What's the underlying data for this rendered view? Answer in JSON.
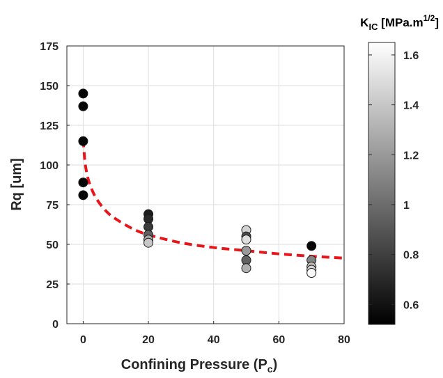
{
  "chart_data": {
    "type": "scatter",
    "xlabel": "Confining Pressure (P",
    "xlabel_sub": "c",
    "xlabel_close": ")",
    "ylabel": "Rq [um]",
    "xlim": [
      -5,
      80
    ],
    "ylim": [
      0,
      175
    ],
    "xticks": [
      0,
      20,
      40,
      60,
      80
    ],
    "yticks": [
      0,
      25,
      50,
      75,
      100,
      125,
      150,
      175
    ],
    "grid": true,
    "points": [
      {
        "x": 0,
        "y": 145,
        "kic": 0.55
      },
      {
        "x": 0,
        "y": 137,
        "kic": 0.55
      },
      {
        "x": 0,
        "y": 115,
        "kic": 0.55
      },
      {
        "x": 0,
        "y": 89,
        "kic": 0.55
      },
      {
        "x": 0,
        "y": 81,
        "kic": 0.55
      },
      {
        "x": 20,
        "y": 69,
        "kic": 0.65
      },
      {
        "x": 20,
        "y": 66,
        "kic": 0.7
      },
      {
        "x": 20,
        "y": 61,
        "kic": 0.78
      },
      {
        "x": 20,
        "y": 56,
        "kic": 0.95
      },
      {
        "x": 20,
        "y": 53,
        "kic": 1.25
      },
      {
        "x": 20,
        "y": 51,
        "kic": 1.4
      },
      {
        "x": 50,
        "y": 59,
        "kic": 1.45
      },
      {
        "x": 50,
        "y": 55,
        "kic": 0.85
      },
      {
        "x": 50,
        "y": 53,
        "kic": 1.5
      },
      {
        "x": 50,
        "y": 46,
        "kic": 1.2
      },
      {
        "x": 50,
        "y": 40,
        "kic": 0.95
      },
      {
        "x": 50,
        "y": 35,
        "kic": 1.3
      },
      {
        "x": 70,
        "y": 49,
        "kic": 0.55
      },
      {
        "x": 70,
        "y": 40,
        "kic": 1.1
      },
      {
        "x": 70,
        "y": 36,
        "kic": 1.35
      },
      {
        "x": 70,
        "y": 34,
        "kic": 1.45
      },
      {
        "x": 70,
        "y": 32,
        "kic": 1.62
      }
    ],
    "fit_line": {
      "color": "#e8151b",
      "style": "dashed",
      "points": [
        [
          0,
          116
        ],
        [
          0.5,
          103
        ],
        [
          1,
          96
        ],
        [
          2,
          88
        ],
        [
          4,
          79
        ],
        [
          7,
          71
        ],
        [
          10,
          66
        ],
        [
          15,
          60
        ],
        [
          20,
          56
        ],
        [
          30,
          51
        ],
        [
          40,
          48
        ],
        [
          50,
          46
        ],
        [
          60,
          44
        ],
        [
          70,
          42.5
        ],
        [
          80,
          41.3
        ]
      ]
    },
    "colorbar": {
      "title": "K",
      "title_sub": "IC",
      "title_rest": " [MPa.m",
      "title_sup": "1/2",
      "title_close": "]",
      "min": 0.52,
      "max": 1.65,
      "ticks": [
        "0.6",
        "0.8",
        "1",
        "1.2",
        "1.4",
        "1.6"
      ],
      "colormap": "gray"
    }
  }
}
